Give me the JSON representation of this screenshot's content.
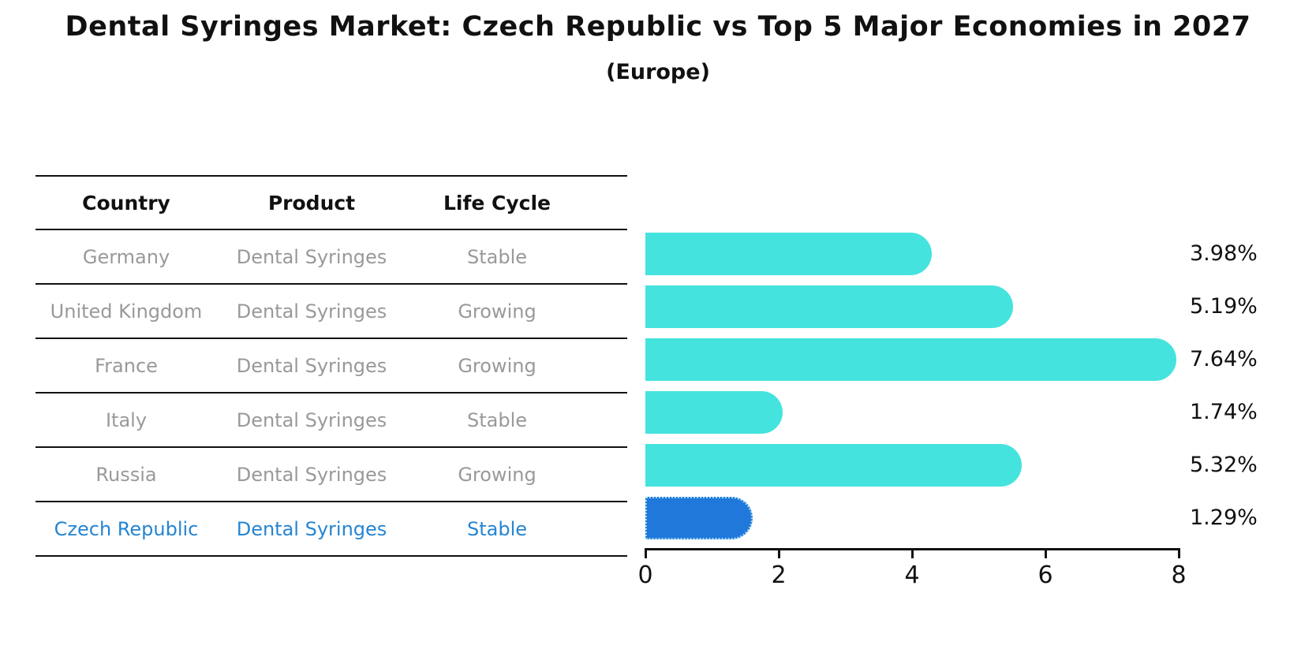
{
  "title": "Dental Syringes Market: Czech Republic vs Top 5 Major Economies in 2027",
  "subtitle": "(Europe)",
  "table": {
    "headers": [
      "Country",
      "Product",
      "Life Cycle"
    ],
    "rows": [
      {
        "country": "Germany",
        "product": "Dental Syringes",
        "life_cycle": "Stable",
        "highlight": false
      },
      {
        "country": "United Kingdom",
        "product": "Dental Syringes",
        "life_cycle": "Growing",
        "highlight": false
      },
      {
        "country": "France",
        "product": "Dental Syringes",
        "life_cycle": "Growing",
        "highlight": false
      },
      {
        "country": "Italy",
        "product": "Dental Syringes",
        "life_cycle": "Stable",
        "highlight": false
      },
      {
        "country": "Russia",
        "product": "Dental Syringes",
        "life_cycle": "Growing",
        "highlight": false
      },
      {
        "country": "Czech Republic",
        "product": "Dental Syringes",
        "life_cycle": "Stable",
        "highlight": true
      }
    ]
  },
  "chart_data": {
    "type": "bar",
    "orientation": "horizontal",
    "title": "Dental Syringes Market: Czech Republic vs Top 5 Major Economies in 2027 (Europe)",
    "categories": [
      "Germany",
      "United Kingdom",
      "France",
      "Italy",
      "Russia",
      "Czech Republic"
    ],
    "values": [
      3.98,
      5.19,
      7.64,
      1.74,
      5.32,
      1.29
    ],
    "value_labels": [
      "3.98%",
      "5.19%",
      "7.64%",
      "1.74%",
      "5.32%",
      "1.29%"
    ],
    "xlim": [
      0,
      8
    ],
    "xticks": [
      "0",
      "2",
      "4",
      "6",
      "8"
    ],
    "grid": false,
    "legend": "none",
    "bar_color": "#45e3de",
    "highlight_color": "#2078db",
    "highlight_border_color": "#9fd8f2",
    "highlight_index": 5
  },
  "colors": {
    "text_muted": "#999999",
    "highlight_text": "#2585d2",
    "line": "#111111"
  }
}
